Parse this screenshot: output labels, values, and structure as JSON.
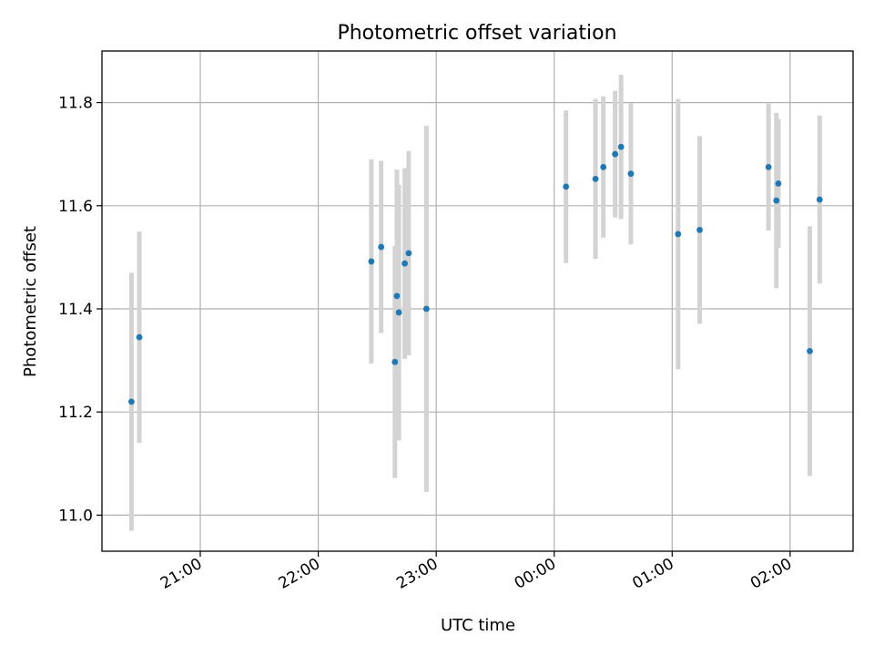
{
  "chart_data": {
    "type": "scatter",
    "title": "Photometric offset variation",
    "xlabel": "UTC time",
    "ylabel": "Photometric offset",
    "x_axis": "time",
    "xlim": [
      "20:10",
      "02:32"
    ],
    "ylim": [
      10.93,
      11.9
    ],
    "x_ticks": [
      "21:00",
      "22:00",
      "23:00",
      "00:00",
      "01:00",
      "02:00"
    ],
    "y_ticks": [
      11.0,
      11.2,
      11.4,
      11.6,
      11.8
    ],
    "y_tick_labels": [
      "11.0",
      "11.2",
      "11.4",
      "11.6",
      "11.8"
    ],
    "grid": true,
    "marker_color": "#1f77b4",
    "errorbar_color": "#d3d3d3",
    "points": [
      {
        "time": "20:25",
        "y": 11.22,
        "err": 0.25
      },
      {
        "time": "20:29",
        "y": 11.345,
        "err": 0.205
      },
      {
        "time": "22:27",
        "y": 11.492,
        "err": 0.198
      },
      {
        "time": "22:32",
        "y": 11.52,
        "err": 0.167
      },
      {
        "time": "22:39",
        "y": 11.297,
        "err": 0.225
      },
      {
        "time": "22:40",
        "y": 11.425,
        "err": 0.245
      },
      {
        "time": "22:41",
        "y": 11.393,
        "err": 0.248
      },
      {
        "time": "22:44",
        "y": 11.488,
        "err": 0.185
      },
      {
        "time": "22:46",
        "y": 11.508,
        "err": 0.198
      },
      {
        "time": "22:55",
        "y": 11.4,
        "err": 0.355
      },
      {
        "time": "00:06",
        "y": 11.637,
        "err": 0.148
      },
      {
        "time": "00:21",
        "y": 11.652,
        "err": 0.155
      },
      {
        "time": "00:25",
        "y": 11.675,
        "err": 0.137
      },
      {
        "time": "00:31",
        "y": 11.7,
        "err": 0.123
      },
      {
        "time": "00:34",
        "y": 11.714,
        "err": 0.14
      },
      {
        "time": "00:39",
        "y": 11.662,
        "err": 0.137
      },
      {
        "time": "01:03",
        "y": 11.545,
        "err": 0.262
      },
      {
        "time": "01:14",
        "y": 11.553,
        "err": 0.182
      },
      {
        "time": "01:49",
        "y": 11.675,
        "err": 0.123
      },
      {
        "time": "01:53",
        "y": 11.61,
        "err": 0.17
      },
      {
        "time": "01:54",
        "y": 11.643,
        "err": 0.125
      },
      {
        "time": "02:10",
        "y": 11.318,
        "err": 0.242
      },
      {
        "time": "02:15",
        "y": 11.612,
        "err": 0.163
      }
    ]
  }
}
